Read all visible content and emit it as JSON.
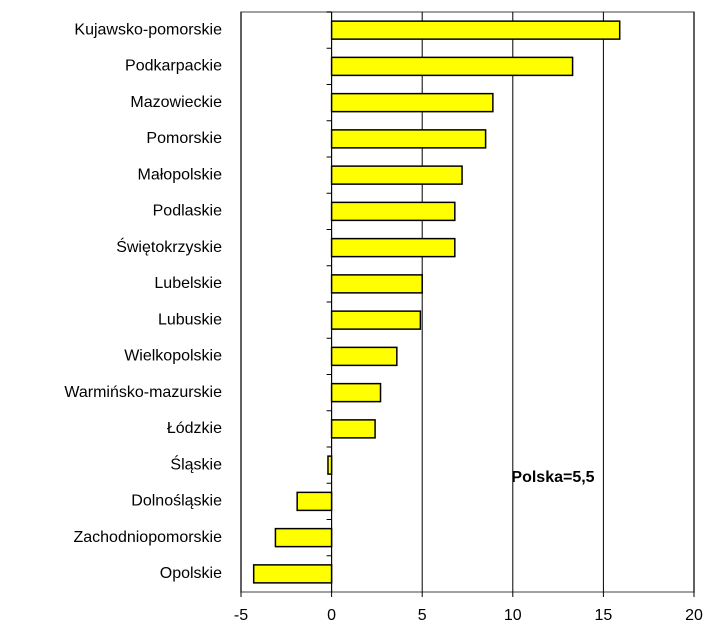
{
  "chart_data": {
    "type": "barh",
    "categories": [
      "Kujawsko-pomorskie",
      "Podkarpackie",
      "Mazowieckie",
      "Pomorskie",
      "Małopolskie",
      "Podlaskie",
      "Świętokrzyskie",
      "Lubelskie",
      "Lubuskie",
      "Wielkopolskie",
      "Warmińsko-mazurskie",
      "Łódzkie",
      "Śląskie",
      "Dolnośląskie",
      "Zachodniopomorskie",
      "Opolskie"
    ],
    "values": [
      15.9,
      13.3,
      8.9,
      8.5,
      7.2,
      6.8,
      6.8,
      5.0,
      4.9,
      3.6,
      2.7,
      2.4,
      -0.2,
      -1.9,
      -3.1,
      -4.3
    ],
    "color": "#ffff00",
    "xlim": [
      -5,
      20
    ],
    "xticks": [
      -5,
      0,
      5,
      10,
      15,
      20
    ],
    "grid": true,
    "annotation": "Polska=5,5"
  }
}
